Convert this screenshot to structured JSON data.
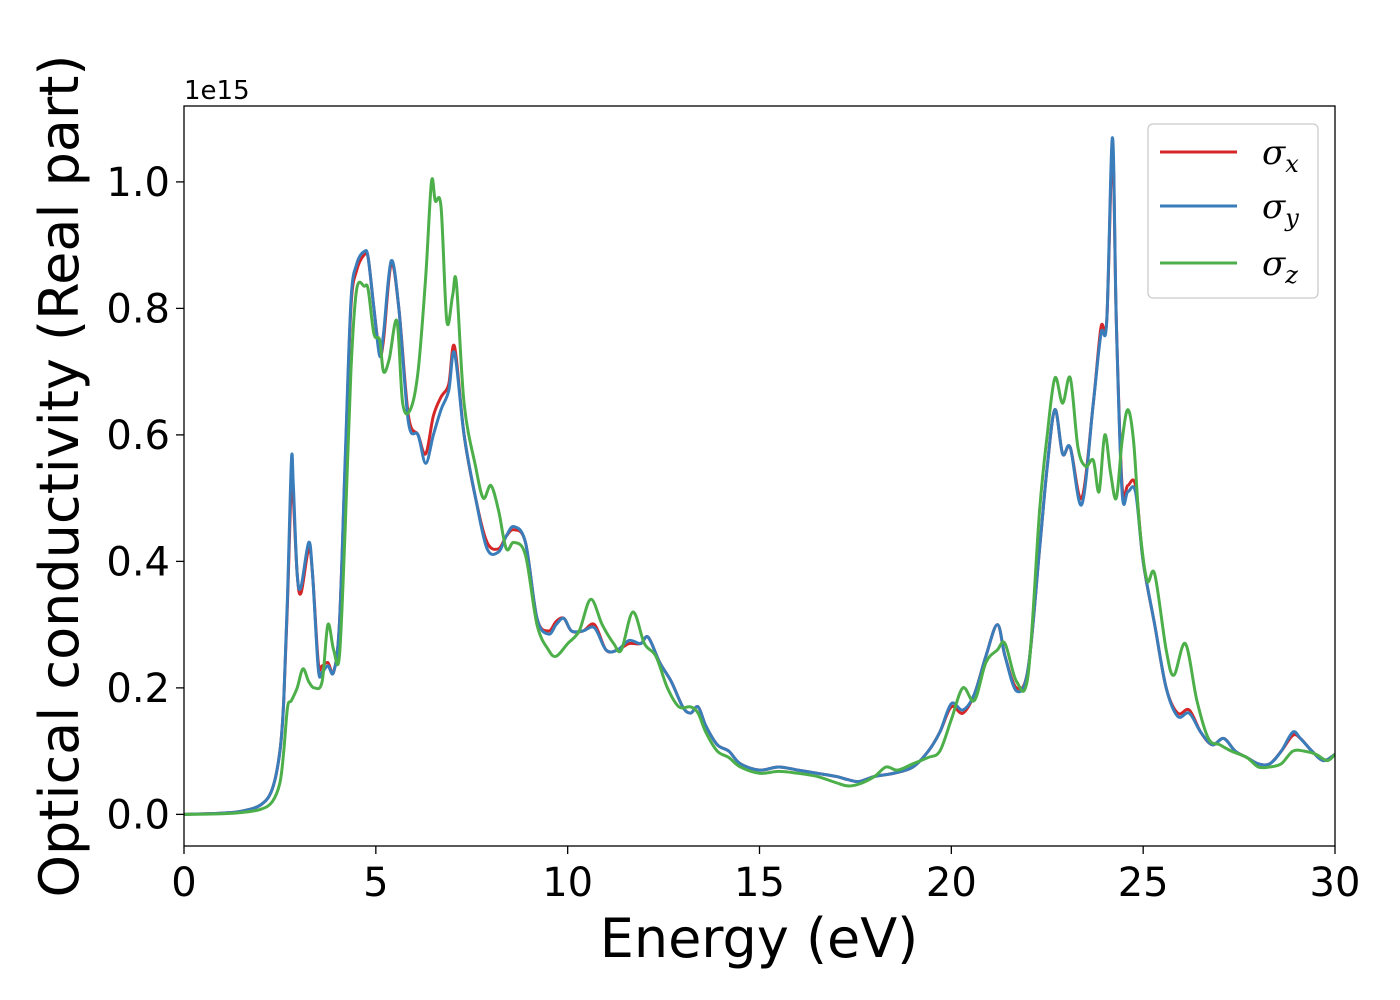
{
  "chart_data": {
    "type": "line",
    "title": "",
    "xlabel": "Energy (eV)",
    "ylabel": "Optical conductivity (Real part)",
    "y_offset_text": "1e15",
    "xlim": [
      0,
      30
    ],
    "ylim": [
      -0.05,
      1.12
    ],
    "xticks": [
      0,
      5,
      10,
      15,
      20,
      25,
      30
    ],
    "xtick_labels": [
      "0",
      "5",
      "10",
      "15",
      "20",
      "25",
      "30"
    ],
    "yticks": [
      0.0,
      0.2,
      0.4,
      0.6,
      0.8,
      1.0
    ],
    "ytick_labels": [
      "0.0",
      "0.2",
      "0.4",
      "0.6",
      "0.8",
      "1.0"
    ],
    "grid": false,
    "legend_position": "top-right",
    "series": [
      {
        "name": "σx",
        "legend_symbol": "σ",
        "legend_subscript": "x",
        "color": "#d62728",
        "x": [
          0,
          1,
          1.5,
          2,
          2.3,
          2.5,
          2.6,
          2.7,
          2.8,
          2.85,
          2.95,
          3.05,
          3.25,
          3.35,
          3.5,
          3.6,
          3.75,
          3.9,
          4.05,
          4.2,
          4.35,
          4.5,
          4.7,
          4.8,
          4.95,
          5.1,
          5.2,
          5.4,
          5.6,
          5.85,
          6.1,
          6.3,
          6.5,
          6.7,
          6.9,
          7.05,
          7.3,
          7.6,
          7.9,
          8.2,
          8.4,
          8.6,
          8.9,
          9.2,
          9.5,
          9.7,
          9.9,
          10.1,
          10.4,
          10.7,
          11.0,
          11.3,
          11.6,
          11.9,
          12.1,
          12.4,
          12.7,
          13.0,
          13.2,
          13.4,
          13.6,
          13.9,
          14.2,
          14.5,
          15.0,
          15.5,
          16.0,
          16.5,
          17.0,
          17.3,
          17.6,
          18.0,
          18.5,
          19.0,
          19.4,
          19.7,
          20.0,
          20.3,
          20.6,
          20.9,
          21.2,
          21.4,
          21.7,
          22.0,
          22.3,
          22.5,
          22.7,
          22.9,
          23.1,
          23.4,
          23.7,
          23.9,
          24.05,
          24.2,
          24.3,
          24.45,
          24.6,
          24.8,
          25.0,
          25.3,
          25.6,
          25.9,
          26.2,
          26.5,
          26.8,
          27.1,
          27.4,
          27.7,
          28.0,
          28.3,
          28.6,
          28.9,
          29.1,
          29.4,
          29.7,
          30.0
        ],
        "values": [
          0.0,
          0.002,
          0.005,
          0.015,
          0.04,
          0.1,
          0.18,
          0.34,
          0.53,
          0.5,
          0.38,
          0.35,
          0.42,
          0.38,
          0.24,
          0.235,
          0.24,
          0.225,
          0.3,
          0.55,
          0.8,
          0.86,
          0.885,
          0.88,
          0.8,
          0.73,
          0.75,
          0.87,
          0.8,
          0.63,
          0.6,
          0.57,
          0.63,
          0.66,
          0.68,
          0.74,
          0.6,
          0.5,
          0.43,
          0.42,
          0.44,
          0.45,
          0.43,
          0.31,
          0.29,
          0.305,
          0.31,
          0.29,
          0.29,
          0.3,
          0.26,
          0.26,
          0.27,
          0.27,
          0.28,
          0.24,
          0.21,
          0.17,
          0.16,
          0.17,
          0.14,
          0.11,
          0.1,
          0.08,
          0.07,
          0.075,
          0.07,
          0.065,
          0.06,
          0.055,
          0.052,
          0.06,
          0.065,
          0.075,
          0.1,
          0.13,
          0.17,
          0.16,
          0.19,
          0.25,
          0.3,
          0.25,
          0.2,
          0.23,
          0.42,
          0.55,
          0.64,
          0.57,
          0.58,
          0.5,
          0.65,
          0.77,
          0.78,
          1.05,
          0.78,
          0.52,
          0.52,
          0.52,
          0.4,
          0.3,
          0.2,
          0.16,
          0.165,
          0.13,
          0.11,
          0.12,
          0.1,
          0.09,
          0.08,
          0.08,
          0.1,
          0.125,
          0.12,
          0.1,
          0.085,
          0.095
        ]
      },
      {
        "name": "σy",
        "legend_symbol": "σ",
        "legend_subscript": "y",
        "color": "#3a7dbb",
        "x": [
          0,
          1,
          1.5,
          2,
          2.3,
          2.5,
          2.6,
          2.7,
          2.8,
          2.85,
          2.95,
          3.05,
          3.25,
          3.35,
          3.5,
          3.6,
          3.75,
          3.9,
          4.05,
          4.2,
          4.35,
          4.5,
          4.7,
          4.8,
          4.95,
          5.1,
          5.2,
          5.4,
          5.6,
          5.85,
          6.1,
          6.3,
          6.5,
          6.7,
          6.9,
          7.05,
          7.3,
          7.6,
          7.9,
          8.2,
          8.4,
          8.6,
          8.9,
          9.2,
          9.5,
          9.7,
          9.9,
          10.1,
          10.4,
          10.7,
          11.0,
          11.3,
          11.6,
          11.9,
          12.1,
          12.4,
          12.7,
          13.0,
          13.2,
          13.4,
          13.6,
          13.9,
          14.2,
          14.5,
          15.0,
          15.5,
          16.0,
          16.5,
          17.0,
          17.3,
          17.6,
          18.0,
          18.5,
          19.0,
          19.4,
          19.7,
          20.0,
          20.3,
          20.6,
          20.9,
          21.2,
          21.4,
          21.7,
          22.0,
          22.3,
          22.5,
          22.7,
          22.9,
          23.1,
          23.4,
          23.7,
          23.9,
          24.05,
          24.2,
          24.3,
          24.45,
          24.6,
          24.8,
          25.0,
          25.3,
          25.6,
          25.9,
          26.2,
          26.5,
          26.8,
          27.1,
          27.4,
          27.7,
          28.0,
          28.3,
          28.6,
          28.9,
          29.1,
          29.4,
          29.7,
          30.0
        ],
        "values": [
          0.0,
          0.002,
          0.005,
          0.015,
          0.04,
          0.1,
          0.18,
          0.35,
          0.56,
          0.52,
          0.38,
          0.36,
          0.43,
          0.38,
          0.23,
          0.225,
          0.235,
          0.225,
          0.3,
          0.56,
          0.81,
          0.87,
          0.89,
          0.88,
          0.8,
          0.725,
          0.76,
          0.875,
          0.8,
          0.62,
          0.6,
          0.555,
          0.6,
          0.64,
          0.67,
          0.73,
          0.6,
          0.5,
          0.42,
          0.415,
          0.44,
          0.455,
          0.43,
          0.31,
          0.285,
          0.3,
          0.31,
          0.29,
          0.29,
          0.295,
          0.26,
          0.26,
          0.275,
          0.27,
          0.28,
          0.24,
          0.21,
          0.17,
          0.16,
          0.17,
          0.14,
          0.11,
          0.1,
          0.08,
          0.07,
          0.075,
          0.07,
          0.065,
          0.06,
          0.055,
          0.052,
          0.06,
          0.065,
          0.075,
          0.1,
          0.13,
          0.175,
          0.165,
          0.19,
          0.25,
          0.3,
          0.25,
          0.195,
          0.23,
          0.42,
          0.55,
          0.64,
          0.57,
          0.58,
          0.49,
          0.65,
          0.76,
          0.78,
          1.07,
          0.78,
          0.51,
          0.51,
          0.51,
          0.4,
          0.3,
          0.2,
          0.155,
          0.16,
          0.13,
          0.11,
          0.12,
          0.1,
          0.09,
          0.08,
          0.08,
          0.1,
          0.13,
          0.12,
          0.1,
          0.085,
          0.095
        ]
      },
      {
        "name": "σz",
        "legend_symbol": "σ",
        "legend_subscript": "z",
        "color": "#4daf4a",
        "x": [
          0,
          1,
          1.5,
          2,
          2.3,
          2.5,
          2.6,
          2.7,
          2.8,
          2.95,
          3.1,
          3.25,
          3.4,
          3.6,
          3.75,
          3.9,
          4.05,
          4.2,
          4.35,
          4.5,
          4.7,
          4.8,
          4.95,
          5.1,
          5.2,
          5.35,
          5.55,
          5.7,
          5.9,
          6.1,
          6.3,
          6.45,
          6.55,
          6.7,
          6.85,
          7.0,
          7.1,
          7.3,
          7.6,
          7.8,
          8.0,
          8.2,
          8.4,
          8.6,
          8.9,
          9.2,
          9.5,
          9.7,
          10.0,
          10.3,
          10.6,
          10.9,
          11.2,
          11.4,
          11.7,
          12.0,
          12.3,
          12.6,
          12.9,
          13.2,
          13.4,
          13.6,
          13.9,
          14.2,
          14.5,
          15.0,
          15.5,
          16.0,
          16.5,
          17.0,
          17.3,
          17.6,
          18.0,
          18.3,
          18.6,
          19.0,
          19.4,
          19.7,
          20.0,
          20.3,
          20.6,
          20.9,
          21.2,
          21.4,
          21.7,
          22.0,
          22.3,
          22.5,
          22.7,
          22.9,
          23.1,
          23.3,
          23.5,
          23.7,
          23.85,
          24.0,
          24.15,
          24.3,
          24.45,
          24.6,
          24.75,
          24.9,
          25.1,
          25.3,
          25.6,
          25.8,
          26.1,
          26.4,
          26.7,
          27.0,
          27.3,
          27.7,
          28.0,
          28.3,
          28.6,
          28.9,
          29.2,
          29.5,
          29.8,
          30.0
        ],
        "values": [
          0.0,
          0.001,
          0.003,
          0.008,
          0.02,
          0.05,
          0.1,
          0.17,
          0.18,
          0.2,
          0.23,
          0.21,
          0.2,
          0.21,
          0.3,
          0.26,
          0.25,
          0.45,
          0.7,
          0.83,
          0.835,
          0.83,
          0.76,
          0.75,
          0.7,
          0.72,
          0.78,
          0.65,
          0.64,
          0.7,
          0.85,
          1.0,
          0.97,
          0.96,
          0.78,
          0.82,
          0.84,
          0.65,
          0.55,
          0.5,
          0.52,
          0.48,
          0.42,
          0.43,
          0.41,
          0.3,
          0.26,
          0.25,
          0.27,
          0.29,
          0.34,
          0.3,
          0.27,
          0.26,
          0.32,
          0.27,
          0.25,
          0.2,
          0.17,
          0.17,
          0.16,
          0.13,
          0.1,
          0.09,
          0.075,
          0.065,
          0.068,
          0.065,
          0.06,
          0.05,
          0.045,
          0.048,
          0.06,
          0.075,
          0.07,
          0.08,
          0.09,
          0.1,
          0.15,
          0.2,
          0.18,
          0.24,
          0.26,
          0.27,
          0.21,
          0.22,
          0.48,
          0.6,
          0.69,
          0.65,
          0.69,
          0.58,
          0.55,
          0.56,
          0.51,
          0.6,
          0.54,
          0.5,
          0.59,
          0.64,
          0.59,
          0.46,
          0.37,
          0.38,
          0.26,
          0.22,
          0.27,
          0.18,
          0.12,
          0.11,
          0.1,
          0.09,
          0.075,
          0.075,
          0.08,
          0.1,
          0.1,
          0.095,
          0.085,
          0.095
        ]
      }
    ]
  }
}
